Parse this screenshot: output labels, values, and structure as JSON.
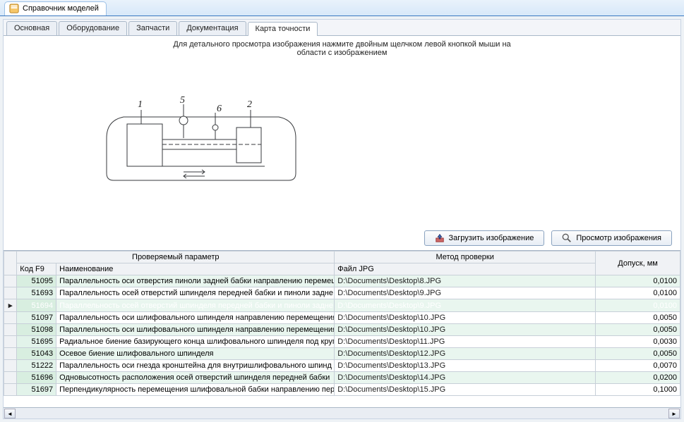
{
  "window": {
    "title": "Справочник моделей"
  },
  "tabs": [
    {
      "label": "Основная",
      "active": false
    },
    {
      "label": "Оборудование",
      "active": false
    },
    {
      "label": "Запчасти",
      "active": false
    },
    {
      "label": "Документация",
      "active": false
    },
    {
      "label": "Карта точности",
      "active": true
    }
  ],
  "instruction": {
    "line1": "Для детального просмотра изображения нажмите двойным щелчком левой кнопкой мыши на",
    "line2": "области с изображением"
  },
  "buttons": {
    "load": "Загрузить изображение",
    "view": "Просмотр изображения"
  },
  "grid": {
    "headers": {
      "group_param": "Проверяемый параметр",
      "group_method": "Метод проверки",
      "tolerance": "Допуск, мм",
      "code": "Код F9",
      "name": "Наименование",
      "file": "Файл JPG"
    },
    "rows": [
      {
        "code": "51095",
        "name": "Параллельность оси отверстия пиноли задней бабки направлению перемещ",
        "file": "D:\\Documents\\Desktop\\8.JPG",
        "tol": "0,0100",
        "selected": false,
        "pointer": false
      },
      {
        "code": "51693",
        "name": "Параллельность осей отверстий шпинделя передней бабки и пиноли задне",
        "file": "D:\\Documents\\Desktop\\9.JPG",
        "tol": "0,0100",
        "selected": false,
        "pointer": false
      },
      {
        "code": "51694",
        "name": "Параллельность осей отверстий шпинделя передней бабки и пиноли задне",
        "file": "D:\\Documents\\Desktop\\9.JPG",
        "tol": "0,0100",
        "selected": true,
        "pointer": true
      },
      {
        "code": "51097",
        "name": "Параллельность оси шлифовального шпинделя направлению перемещения",
        "file": "D:\\Documents\\Desktop\\10.JPG",
        "tol": "0,0050",
        "selected": false,
        "pointer": false
      },
      {
        "code": "51098",
        "name": "Параллельность оси шлифовального шпинделя направлению перемещения",
        "file": "D:\\Documents\\Desktop\\10.JPG",
        "tol": "0,0050",
        "selected": false,
        "pointer": false
      },
      {
        "code": "51695",
        "name": "Радиальное биение базирующего конца шлифовального шпинделя под круг",
        "file": "D:\\Documents\\Desktop\\11.JPG",
        "tol": "0,0030",
        "selected": false,
        "pointer": false
      },
      {
        "code": "51043",
        "name": "Осевое биение шлифовального шпинделя",
        "file": "D:\\Documents\\Desktop\\12.JPG",
        "tol": "0,0050",
        "selected": false,
        "pointer": false
      },
      {
        "code": "51222",
        "name": "Параллельность оси гнезда кронштейна для внутришлифовального шпинд",
        "file": "D:\\Documents\\Desktop\\13.JPG",
        "tol": "0,0070",
        "selected": false,
        "pointer": false
      },
      {
        "code": "51696",
        "name": "Одновысотность расположения осей отверстий шпинделя передней бабки",
        "file": "D:\\Documents\\Desktop\\14.JPG",
        "tol": "0,0200",
        "selected": false,
        "pointer": false
      },
      {
        "code": "51697",
        "name": "Перпендикулярность перемещения шлифовальной бабки направлению пер",
        "file": "D:\\Documents\\Desktop\\15.JPG",
        "tol": "0,1000",
        "selected": false,
        "pointer": false
      }
    ]
  },
  "colors": {
    "selected_row_bg": "#56c1f6",
    "selected_code_bg": "#3db1ef",
    "even_row_bg": "#e9f6ef",
    "code_bg": "#e2f3ea",
    "border": "#c7cfd8"
  },
  "diagram": {
    "labels": [
      "1",
      "5",
      "6",
      "2"
    ],
    "stroke": "#37393c",
    "fill": "#ffffff"
  }
}
